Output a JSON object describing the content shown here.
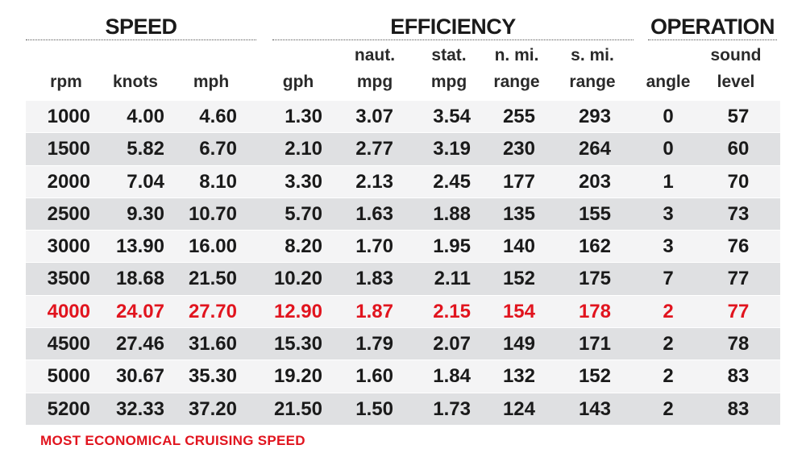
{
  "groups": {
    "speed": "SPEED",
    "efficiency": "EFFICIENCY",
    "operation": "OPERATION"
  },
  "headers": {
    "rpm": "rpm",
    "knots": "knots",
    "mph": "mph",
    "gph": "gph",
    "naut_top": "naut.",
    "naut_bottom": "mpg",
    "stat_top": "stat.",
    "stat_bottom": "mpg",
    "nmi_top": "n. mi.",
    "nmi_bottom": "range",
    "smi_top": "s. mi.",
    "smi_bottom": "range",
    "angle": "angle",
    "sound_top": "sound",
    "sound_bottom": "level"
  },
  "rows": [
    {
      "rpm": "1000",
      "knots": "4.00",
      "mph": "4.60",
      "gph": "1.30",
      "naut_mpg": "3.07",
      "stat_mpg": "3.54",
      "nmi_range": "255",
      "smi_range": "293",
      "angle": "0",
      "sound": "57"
    },
    {
      "rpm": "1500",
      "knots": "5.82",
      "mph": "6.70",
      "gph": "2.10",
      "naut_mpg": "2.77",
      "stat_mpg": "3.19",
      "nmi_range": "230",
      "smi_range": "264",
      "angle": "0",
      "sound": "60"
    },
    {
      "rpm": "2000",
      "knots": "7.04",
      "mph": "8.10",
      "gph": "3.30",
      "naut_mpg": "2.13",
      "stat_mpg": "2.45",
      "nmi_range": "177",
      "smi_range": "203",
      "angle": "1",
      "sound": "70"
    },
    {
      "rpm": "2500",
      "knots": "9.30",
      "mph": "10.70",
      "gph": "5.70",
      "naut_mpg": "1.63",
      "stat_mpg": "1.88",
      "nmi_range": "135",
      "smi_range": "155",
      "angle": "3",
      "sound": "73"
    },
    {
      "rpm": "3000",
      "knots": "13.90",
      "mph": "16.00",
      "gph": "8.20",
      "naut_mpg": "1.70",
      "stat_mpg": "1.95",
      "nmi_range": "140",
      "smi_range": "162",
      "angle": "3",
      "sound": "76"
    },
    {
      "rpm": "3500",
      "knots": "18.68",
      "mph": "21.50",
      "gph": "10.20",
      "naut_mpg": "1.83",
      "stat_mpg": "2.11",
      "nmi_range": "152",
      "smi_range": "175",
      "angle": "7",
      "sound": "77"
    },
    {
      "rpm": "4000",
      "knots": "24.07",
      "mph": "27.70",
      "gph": "12.90",
      "naut_mpg": "1.87",
      "stat_mpg": "2.15",
      "nmi_range": "154",
      "smi_range": "178",
      "angle": "2",
      "sound": "77",
      "highlight": true
    },
    {
      "rpm": "4500",
      "knots": "27.46",
      "mph": "31.60",
      "gph": "15.30",
      "naut_mpg": "1.79",
      "stat_mpg": "2.07",
      "nmi_range": "149",
      "smi_range": "171",
      "angle": "2",
      "sound": "78"
    },
    {
      "rpm": "5000",
      "knots": "30.67",
      "mph": "35.30",
      "gph": "19.20",
      "naut_mpg": "1.60",
      "stat_mpg": "1.84",
      "nmi_range": "132",
      "smi_range": "152",
      "angle": "2",
      "sound": "83"
    },
    {
      "rpm": "5200",
      "knots": "32.33",
      "mph": "37.20",
      "gph": "21.50",
      "naut_mpg": "1.50",
      "stat_mpg": "1.73",
      "nmi_range": "124",
      "smi_range": "143",
      "angle": "2",
      "sound": "83"
    }
  ],
  "footnote": "MOST ECONOMICAL CRUISING SPEED",
  "colors": {
    "highlight": "#e1141e",
    "row_light": "#f4f4f5",
    "row_dark": "#dfe0e2",
    "text": "#1a1a1a"
  }
}
